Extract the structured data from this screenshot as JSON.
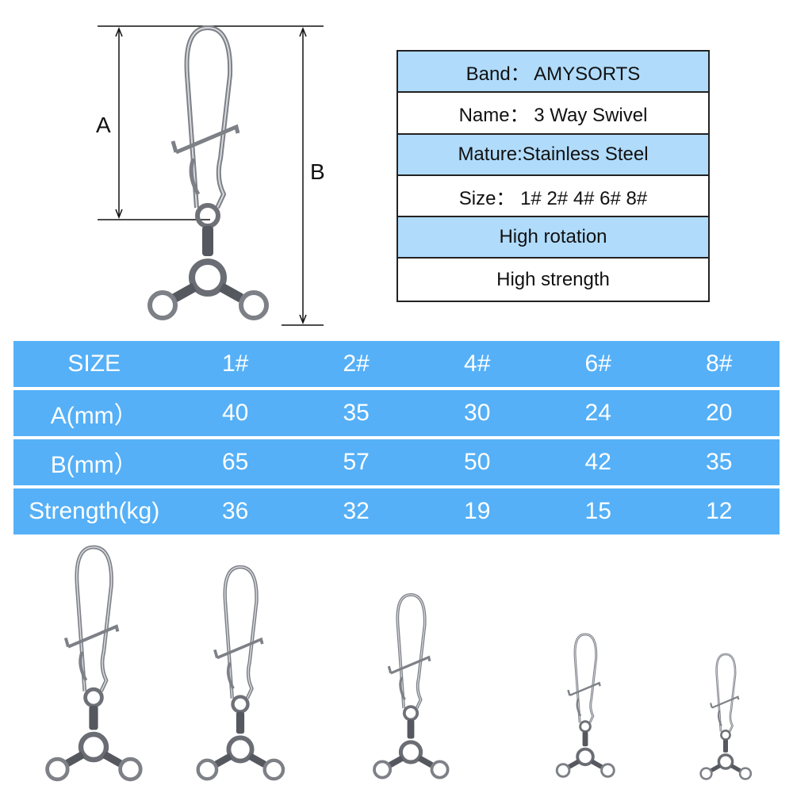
{
  "dimension_labels": {
    "a": "A",
    "b": "B"
  },
  "spec_box": {
    "rows": [
      {
        "text": "Band：  AMYSORTS",
        "highlight": true
      },
      {
        "text": "Name：  3 Way Swivel",
        "highlight": false
      },
      {
        "text": "Mature:Stainless Steel",
        "highlight": true
      },
      {
        "text": "Size：  1# 2# 4# 6# 8#",
        "highlight": false
      },
      {
        "text": "High rotation",
        "highlight": true
      },
      {
        "text": "High strength",
        "highlight": false
      }
    ]
  },
  "size_table": {
    "headers": [
      "SIZE",
      "1#",
      "2#",
      "4#",
      "6#",
      "8#"
    ],
    "rows": [
      [
        "A(mm）",
        "40",
        "35",
        "30",
        "24",
        "20"
      ],
      [
        "B(mm）",
        "65",
        "57",
        "50",
        "42",
        "35"
      ],
      [
        "Strength(kg)",
        "36",
        "32",
        "19",
        "15",
        "12"
      ]
    ]
  },
  "colors": {
    "table_blue": "#55b0f7",
    "spec_blue": "#b0dbfb",
    "metal": "#8a8d92"
  },
  "product_images": [
    "1#",
    "2#",
    "4#",
    "6#",
    "8#"
  ]
}
